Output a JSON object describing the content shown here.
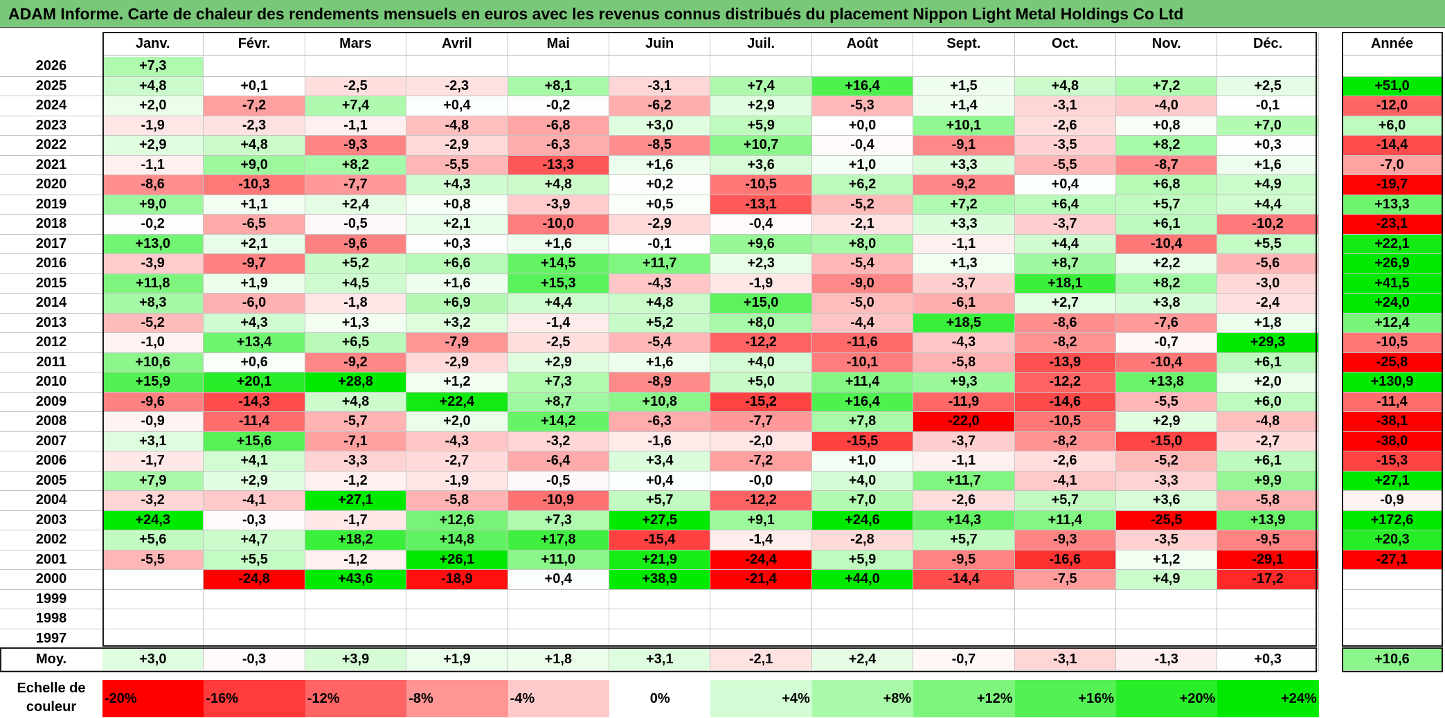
{
  "title": "ADAM Informe. Carte de chaleur des rendements mensuels en euros avec les revenus connus distribués du placement Nippon Light Metal Holdings Co Ltd",
  "chart_data": {
    "type": "heatmap",
    "title": "ADAM Informe. Carte de chaleur des rendements mensuels en euros avec les revenus connus distribués du placement Nippon Light Metal Holdings Co Ltd",
    "columns": [
      "Janv.",
      "Févr.",
      "Mars",
      "Avril",
      "Mai",
      "Juin",
      "Juil.",
      "Août",
      "Sept.",
      "Oct.",
      "Nov.",
      "Déc."
    ],
    "annual_header": "Année",
    "rows": [
      {
        "year": "2026",
        "months": [
          "+7,3",
          "",
          "",
          "",
          "",
          "",
          "",
          "",
          "",
          "",
          "",
          ""
        ],
        "annual": ""
      },
      {
        "year": "2025",
        "months": [
          "+4,8",
          "+0,1",
          "-2,5",
          "-2,3",
          "+8,1",
          "-3,1",
          "+7,4",
          "+16,4",
          "+1,5",
          "+4,8",
          "+7,2",
          "+2,5"
        ],
        "annual": "+51,0"
      },
      {
        "year": "2024",
        "months": [
          "+2,0",
          "-7,2",
          "+7,4",
          "+0,4",
          "-0,2",
          "-6,2",
          "+2,9",
          "-5,3",
          "+1,4",
          "-3,1",
          "-4,0",
          "-0,1"
        ],
        "annual": "-12,0"
      },
      {
        "year": "2023",
        "months": [
          "-1,9",
          "-2,3",
          "-1,1",
          "-4,8",
          "-6,8",
          "+3,0",
          "+5,9",
          "+0,0",
          "+10,1",
          "-2,6",
          "+0,8",
          "+7,0"
        ],
        "annual": "+6,0"
      },
      {
        "year": "2022",
        "months": [
          "+2,9",
          "+4,8",
          "-9,3",
          "-2,9",
          "-6,3",
          "-8,5",
          "+10,7",
          "-0,4",
          "-9,1",
          "-3,5",
          "+8,2",
          "+0,3"
        ],
        "annual": "-14,4"
      },
      {
        "year": "2021",
        "months": [
          "-1,1",
          "+9,0",
          "+8,2",
          "-5,5",
          "-13,3",
          "+1,6",
          "+3,6",
          "+1,0",
          "+3,3",
          "-5,5",
          "-8,7",
          "+1,6"
        ],
        "annual": "-7,0"
      },
      {
        "year": "2020",
        "months": [
          "-8,6",
          "-10,3",
          "-7,7",
          "+4,3",
          "+4,8",
          "+0,2",
          "-10,5",
          "+6,2",
          "-9,2",
          "+0,4",
          "+6,8",
          "+4,9"
        ],
        "annual": "-19,7"
      },
      {
        "year": "2019",
        "months": [
          "+9,0",
          "+1,1",
          "+2,4",
          "+0,8",
          "-3,9",
          "+0,5",
          "-13,1",
          "-5,2",
          "+7,2",
          "+6,4",
          "+5,7",
          "+4,4"
        ],
        "annual": "+13,3"
      },
      {
        "year": "2018",
        "months": [
          "-0,2",
          "-6,5",
          "-0,5",
          "+2,1",
          "-10,0",
          "-2,9",
          "-0,4",
          "-2,1",
          "+3,3",
          "-3,7",
          "+6,1",
          "-10,2"
        ],
        "annual": "-23,1"
      },
      {
        "year": "2017",
        "months": [
          "+13,0",
          "+2,1",
          "-9,6",
          "+0,3",
          "+1,6",
          "-0,1",
          "+9,6",
          "+8,0",
          "-1,1",
          "+4,4",
          "-10,4",
          "+5,5"
        ],
        "annual": "+22,1"
      },
      {
        "year": "2016",
        "months": [
          "-3,9",
          "-9,7",
          "+5,2",
          "+6,6",
          "+14,5",
          "+11,7",
          "+2,3",
          "-5,4",
          "+1,3",
          "+8,7",
          "+2,2",
          "-5,6"
        ],
        "annual": "+26,9"
      },
      {
        "year": "2015",
        "months": [
          "+11,8",
          "+1,9",
          "+4,5",
          "+1,6",
          "+15,3",
          "-4,3",
          "-1,9",
          "-9,0",
          "-3,7",
          "+18,1",
          "+8,2",
          "-3,0"
        ],
        "annual": "+41,5"
      },
      {
        "year": "2014",
        "months": [
          "+8,3",
          "-6,0",
          "-1,8",
          "+6,9",
          "+4,4",
          "+4,8",
          "+15,0",
          "-5,0",
          "-6,1",
          "+2,7",
          "+3,8",
          "-2,4"
        ],
        "annual": "+24,0"
      },
      {
        "year": "2013",
        "months": [
          "-5,2",
          "+4,3",
          "+1,3",
          "+3,2",
          "-1,4",
          "+5,2",
          "+8,0",
          "-4,4",
          "+18,5",
          "-8,6",
          "-7,6",
          "+1,8"
        ],
        "annual": "+12,4"
      },
      {
        "year": "2012",
        "months": [
          "-1,0",
          "+13,4",
          "+6,5",
          "-7,9",
          "-2,5",
          "-5,4",
          "-12,2",
          "-11,6",
          "-4,3",
          "-8,2",
          "-0,7",
          "+29,3"
        ],
        "annual": "-10,5"
      },
      {
        "year": "2011",
        "months": [
          "+10,6",
          "+0,6",
          "-9,2",
          "-2,9",
          "+2,9",
          "+1,6",
          "+4,0",
          "-10,1",
          "-5,8",
          "-13,9",
          "-10,4",
          "+6,1"
        ],
        "annual": "-25,8"
      },
      {
        "year": "2010",
        "months": [
          "+15,9",
          "+20,1",
          "+28,8",
          "+1,2",
          "+7,3",
          "-8,9",
          "+5,0",
          "+11,4",
          "+9,3",
          "-12,2",
          "+13,8",
          "+2,0"
        ],
        "annual": "+130,9"
      },
      {
        "year": "2009",
        "months": [
          "-9,6",
          "-14,3",
          "+4,8",
          "+22,4",
          "+8,7",
          "+10,8",
          "-15,2",
          "+16,4",
          "-11,9",
          "-14,6",
          "-5,5",
          "+6,0"
        ],
        "annual": "-11,4"
      },
      {
        "year": "2008",
        "months": [
          "-0,9",
          "-11,4",
          "-5,7",
          "+2,0",
          "+14,2",
          "-6,3",
          "-7,7",
          "+7,8",
          "-22,0",
          "-10,5",
          "+2,9",
          "-4,8"
        ],
        "annual": "-38,1"
      },
      {
        "year": "2007",
        "months": [
          "+3,1",
          "+15,6",
          "-7,1",
          "-4,3",
          "-3,2",
          "-1,6",
          "-2,0",
          "-15,5",
          "-3,7",
          "-8,2",
          "-15,0",
          "-2,7"
        ],
        "annual": "-38,0"
      },
      {
        "year": "2006",
        "months": [
          "-1,7",
          "+4,1",
          "-3,3",
          "-2,7",
          "-6,4",
          "+3,4",
          "-7,2",
          "+1,0",
          "-1,1",
          "-2,6",
          "-5,2",
          "+6,1"
        ],
        "annual": "-15,3"
      },
      {
        "year": "2005",
        "months": [
          "+7,9",
          "+2,9",
          "-1,2",
          "-1,9",
          "-0,5",
          "+0,4",
          "-0,0",
          "+4,0",
          "+11,7",
          "-4,1",
          "-3,3",
          "+9,9"
        ],
        "annual": "+27,1"
      },
      {
        "year": "2004",
        "months": [
          "-3,2",
          "-4,1",
          "+27,1",
          "-5,8",
          "-10,9",
          "+5,7",
          "-12,2",
          "+7,0",
          "-2,6",
          "+5,7",
          "+3,6",
          "-5,8"
        ],
        "annual": "-0,9"
      },
      {
        "year": "2003",
        "months": [
          "+24,3",
          "-0,3",
          "-1,7",
          "+12,6",
          "+7,3",
          "+27,5",
          "+9,1",
          "+24,6",
          "+14,3",
          "+11,4",
          "-25,5",
          "+13,9"
        ],
        "annual": "+172,6"
      },
      {
        "year": "2002",
        "months": [
          "+5,6",
          "+4,7",
          "+18,2",
          "+14,8",
          "+17,8",
          "-15,4",
          "-1,4",
          "-2,8",
          "+5,7",
          "-9,3",
          "-3,5",
          "-9,5"
        ],
        "annual": "+20,3"
      },
      {
        "year": "2001",
        "months": [
          "-5,5",
          "+5,5",
          "-1,2",
          "+26,1",
          "+11,0",
          "+21,9",
          "-24,4",
          "+5,9",
          "-9,5",
          "-16,6",
          "+1,2",
          "-29,1"
        ],
        "annual": "-27,1"
      },
      {
        "year": "2000",
        "months": [
          "",
          "-24,8",
          "+43,6",
          "-18,9",
          "+0,4",
          "+38,9",
          "-21,4",
          "+44,0",
          "-14,4",
          "-7,5",
          "+4,9",
          "-17,2"
        ],
        "annual": ""
      },
      {
        "year": "1999",
        "months": [
          "",
          "",
          "",
          "",
          "",
          "",
          "",
          "",
          "",
          "",
          "",
          ""
        ],
        "annual": ""
      },
      {
        "year": "1998",
        "months": [
          "",
          "",
          "",
          "",
          "",
          "",
          "",
          "",
          "",
          "",
          "",
          ""
        ],
        "annual": ""
      },
      {
        "year": "1997",
        "months": [
          "",
          "",
          "",
          "",
          "",
          "",
          "",
          "",
          "",
          "",
          "",
          ""
        ],
        "annual": ""
      }
    ],
    "average": {
      "label": "Moy.",
      "months": [
        "+3,0",
        "-0,3",
        "+3,9",
        "+1,9",
        "+1,8",
        "+3,1",
        "-2,1",
        "+2,4",
        "-0,7",
        "-3,1",
        "-1,3",
        "+0,3"
      ],
      "annual": "+10,6"
    },
    "scale": {
      "label": "Echelle de couleur",
      "steps": [
        {
          "value": -20,
          "label": "-20%",
          "color": "#ff0000"
        },
        {
          "value": -16,
          "label": "-16%",
          "color": "#ff3b3b"
        },
        {
          "value": -12,
          "label": "-12%",
          "color": "#ff6565"
        },
        {
          "value": -8,
          "label": "-8%",
          "color": "#ff9595"
        },
        {
          "value": -4,
          "label": "-4%",
          "color": "#ffcaca"
        },
        {
          "value": 0,
          "label": "0%",
          "color": "#ffffff"
        },
        {
          "value": 4,
          "label": "+4%",
          "color": "#d4fcd4"
        },
        {
          "value": 8,
          "label": "+8%",
          "color": "#a8f9a8"
        },
        {
          "value": 12,
          "label": "+12%",
          "color": "#7df57d"
        },
        {
          "value": 16,
          "label": "+16%",
          "color": "#53f153"
        },
        {
          "value": 20,
          "label": "+20%",
          "color": "#2aed2a"
        },
        {
          "value": 24,
          "label": "+24%",
          "color": "#00ea00"
        }
      ]
    }
  }
}
